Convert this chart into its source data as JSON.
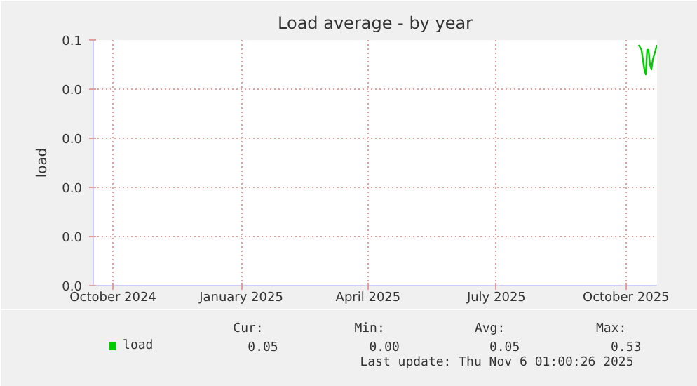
{
  "chart_data": {
    "type": "line",
    "title": "Load average - by year",
    "ylabel": "load",
    "x": [
      "2025-10-24",
      "2025-10-26",
      "2025-10-27",
      "2025-10-28",
      "2025-10-29",
      "2025-10-30",
      "2025-10-31",
      "2025-11-01",
      "2025-11-02",
      "2025-11-03",
      "2025-11-05",
      "2025-11-06"
    ],
    "series": [
      {
        "name": "load",
        "color": "#00cc00",
        "values": [
          0.049,
          0.048,
          0.046,
          0.044,
          0.043,
          0.048,
          0.048,
          0.045,
          0.044,
          0.046,
          0.048,
          0.049
        ]
      }
    ],
    "xlim": [
      "2024-10-02",
      "2025-11-06"
    ],
    "xticks": [
      {
        "value": "2024-10-16",
        "label": "October 2024"
      },
      {
        "value": "2025-01-15",
        "label": "January 2025"
      },
      {
        "value": "2025-04-15",
        "label": "April 2025"
      },
      {
        "value": "2025-07-15",
        "label": "July 2025"
      },
      {
        "value": "2025-10-15",
        "label": "October 2025"
      }
    ],
    "ylim": [
      0,
      0.05
    ],
    "yticks": [
      {
        "value": 0,
        "label": "0.0"
      },
      {
        "value": 0.01,
        "label": "0.0"
      },
      {
        "value": 0.02,
        "label": "0.0"
      },
      {
        "value": 0.03,
        "label": "0.0"
      },
      {
        "value": 0.04,
        "label": "0.0"
      },
      {
        "value": 0.05,
        "label": "0.1"
      }
    ],
    "grid": true,
    "legend": "bottom",
    "annotations": [
      "Cur:",
      "Min:",
      "Avg:",
      "Max:",
      "0.05",
      "0.00",
      "0.05",
      "0.53",
      "Last update: Thu Nov  6 01:00:26 2025"
    ]
  }
}
